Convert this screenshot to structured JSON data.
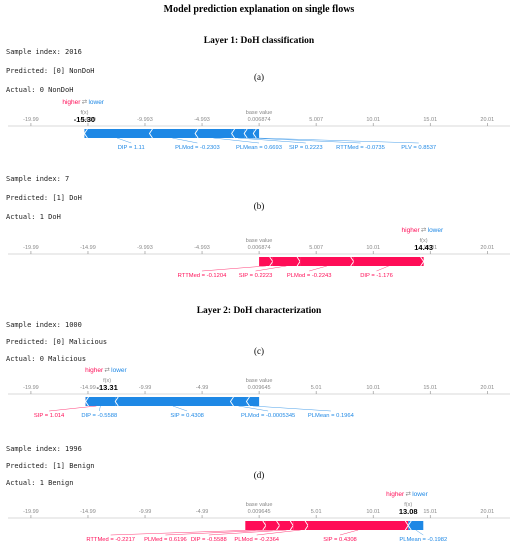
{
  "title": "Model prediction explanation on single flows",
  "layers": [
    {
      "title": "Layer 1: DoH classification"
    },
    {
      "title": "Layer 2: DoH characterization"
    }
  ],
  "labels": {
    "higher": "higher",
    "lower": "lower",
    "fx": "f(x)",
    "base": "base value"
  },
  "colors": {
    "positive": "#ff0d57",
    "negative": "#1e88e5",
    "axis": "#888888",
    "text": "#333333"
  },
  "chart_data": [
    {
      "type": "force",
      "panel": "(a)",
      "meta": [
        "Sample index: 2016",
        "Predicted: [0]  NonDoH",
        "Actual: 0  NonDoH"
      ],
      "ticks": [
        "-19.99",
        "-14.99",
        "-9.993",
        "-4.993",
        "0.006874",
        "5.007",
        "10.01",
        "15.01",
        "20.01"
      ],
      "tick_values": [
        -19.99,
        -14.99,
        -9.993,
        -4.993,
        0.006874,
        5.007,
        10.01,
        15.01,
        20.01
      ],
      "xlim": [
        -22,
        22
      ],
      "base_value": 0.006874,
      "fx": -15.3,
      "fx_label": "-15.30",
      "positive": [],
      "negative": [
        {
          "label": "DIP = 1.11",
          "start": -15.3,
          "end": -9.6
        },
        {
          "label": "PLMod = -0.2303",
          "start": -9.6,
          "end": -5.6
        },
        {
          "label": "PLMean = 0.6693",
          "start": -5.6,
          "end": -2.4
        },
        {
          "label": "SIP = 0.2223",
          "start": -2.4,
          "end": -1.3
        },
        {
          "label": "RTTMed = -0.0735",
          "start": -1.3,
          "end": -0.5
        },
        {
          "label": "PLV = 0.8537",
          "start": -0.5,
          "end": 0.006874
        }
      ],
      "label_pos": [
        {
          "label": "DIP = 1.11",
          "at": -11.2
        },
        {
          "label": "PLMod = -0.2303",
          "at": -5.4
        },
        {
          "label": "PLMean = 0.6693",
          "at": 0.0
        },
        {
          "label": "SIP = 0.2223",
          "at": 4.1
        },
        {
          "label": "RTTMed = -0.0735",
          "at": 8.9
        },
        {
          "label": "PLV = 0.8537",
          "at": 14.0
        }
      ]
    },
    {
      "type": "force",
      "panel": "(b)",
      "meta": [
        "Sample index: 7",
        "Predicted: [1]  DoH",
        "Actual: 1  DoH"
      ],
      "ticks": [
        "-19.99",
        "-14.99",
        "-9.993",
        "-4.993",
        "0.006874",
        "5.007",
        "10.01",
        "15.01",
        "20.01"
      ],
      "tick_values": [
        -19.99,
        -14.99,
        -9.993,
        -4.993,
        0.006874,
        5.007,
        10.01,
        15.01,
        20.01
      ],
      "xlim": [
        -22,
        22
      ],
      "base_value": 0.006874,
      "fx": 14.43,
      "fx_label": "14.43",
      "positive": [
        {
          "label": "RTTMed = -0.1204",
          "start": 0.006874,
          "end": 1.2
        },
        {
          "label": "SIP = 0.2223",
          "start": 1.2,
          "end": 3.6
        },
        {
          "label": "PLMod = -0.2243",
          "start": 3.6,
          "end": 8.3
        },
        {
          "label": "DIP = -1.176",
          "start": 8.3,
          "end": 14.43
        }
      ],
      "negative": [],
      "label_pos": [
        {
          "label": "RTTMed = -0.1204",
          "at": -5.0
        },
        {
          "label": "SIP = 0.2223",
          "at": -0.3
        },
        {
          "label": "PLMod = -0.2243",
          "at": 4.4
        },
        {
          "label": "DIP = -1.176",
          "at": 10.3
        }
      ]
    },
    {
      "type": "force",
      "panel": "(c)",
      "meta": [
        "Sample index: 1000",
        "Predicted: [0]  Malicious",
        "Actual: 0  Malicious"
      ],
      "ticks": [
        "-19.99",
        "-14.99",
        "-9.99",
        "-4.99",
        "0.009645",
        "5.01",
        "10.01",
        "15.01",
        "20.01"
      ],
      "tick_values": [
        -19.99,
        -14.99,
        -9.99,
        -4.99,
        0.009645,
        5.01,
        10.01,
        15.01,
        20.01
      ],
      "xlim": [
        -22,
        22
      ],
      "base_value": 0.009645,
      "fx": -13.31,
      "fx_label": "-13.31",
      "positive": [
        {
          "label": "SIP = 1.014",
          "start": -15.2,
          "end": -13.31
        }
      ],
      "negative": [
        {
          "label": "DIP = -0.5588",
          "start": -15.2,
          "end": -12.6
        },
        {
          "label": "SIP = 0.4308",
          "start": -12.6,
          "end": -2.5
        },
        {
          "label": "PLMod = -0.0005345",
          "start": -2.5,
          "end": -1.1
        },
        {
          "label": "PLMean = 0.1964",
          "start": -1.1,
          "end": 0.009645
        }
      ],
      "label_pos": [
        {
          "label": "SIP = 1.014",
          "at": -18.4
        },
        {
          "label": "DIP = -0.5588",
          "at": -14.0
        },
        {
          "label": "SIP = 0.4308",
          "at": -6.3
        },
        {
          "label": "PLMod = -0.0005345",
          "at": 0.8
        },
        {
          "label": "PLMean = 0.1964",
          "at": 6.3
        }
      ]
    },
    {
      "type": "force",
      "panel": "(d)",
      "meta": [
        "Sample index: 1996",
        "Predicted: [1]  Benign",
        "Actual: 1  Benign"
      ],
      "ticks": [
        "-19.99",
        "-14.99",
        "-9.99",
        "-4.99",
        "0.009645",
        "5.01",
        "10.01",
        "15.01",
        "20.01"
      ],
      "tick_values": [
        -19.99,
        -14.99,
        -9.99,
        -4.99,
        0.009645,
        5.01,
        10.01,
        15.01,
        20.01
      ],
      "xlim": [
        -22,
        22
      ],
      "base_value": 0.009645,
      "fx": 13.08,
      "fx_label": "13.08",
      "positive": [
        {
          "label": "RTTMed = -0.2217",
          "start": -1.2,
          "end": 0.6
        },
        {
          "label": "PLMed = 0.6196",
          "start": 0.6,
          "end": 1.8
        },
        {
          "label": "DIP = -0.5588",
          "start": 1.8,
          "end": 3.0
        },
        {
          "label": "PLMod = -0.2364",
          "start": 3.0,
          "end": 4.3
        },
        {
          "label": "SIP = 0.4308",
          "start": 4.3,
          "end": 13.08
        }
      ],
      "negative": [
        {
          "label": "PLMean = -0.1982",
          "start": 13.08,
          "end": 14.4
        }
      ],
      "label_pos": [
        {
          "label": "RTTMed = -0.2217",
          "at": -13.0
        },
        {
          "label": "PLMed = 0.6196",
          "at": -8.2
        },
        {
          "label": "DIP = -0.5588",
          "at": -4.4
        },
        {
          "label": "PLMod = -0.2364",
          "at": -0.2
        },
        {
          "label": "SIP = 0.4308",
          "at": 7.1
        },
        {
          "label": "PLMean = -0.1982",
          "at": 14.4
        }
      ]
    }
  ]
}
